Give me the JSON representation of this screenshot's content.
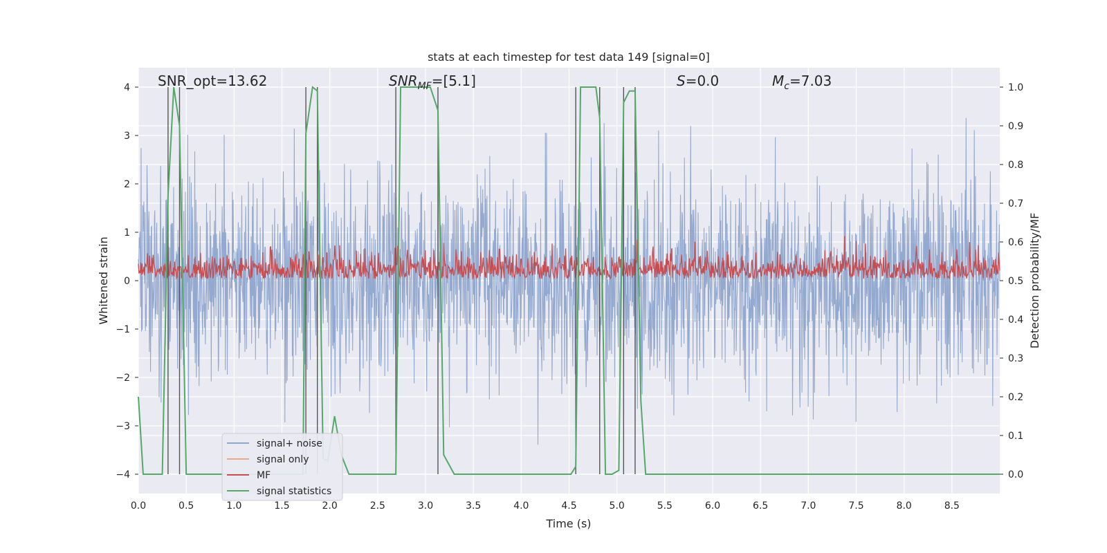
{
  "chart_data": {
    "type": "line",
    "title": "stats at each timestep for test data 149 [signal=0]",
    "xlabel": "Time (s)",
    "ylabel_left": "Whitened strain",
    "ylabel_right": "Detection probability/MF",
    "xlim": [
      0.0,
      9.0
    ],
    "ylim_left": [
      -4.4,
      4.4
    ],
    "ylim_right": [
      -0.05,
      1.05
    ],
    "x_ticks": [
      0.0,
      0.5,
      1.0,
      1.5,
      2.0,
      2.5,
      3.0,
      3.5,
      4.0,
      4.5,
      5.0,
      5.5,
      6.0,
      6.5,
      7.0,
      7.5,
      8.0,
      8.5
    ],
    "x_tick_labels": [
      "0.0",
      "0.5",
      "1.0",
      "1.5",
      "2.0",
      "2.5",
      "3.0",
      "3.5",
      "4.0",
      "4.5",
      "5.0",
      "5.5",
      "6.0",
      "6.5",
      "7.0",
      "7.5",
      "8.0",
      "8.5"
    ],
    "y_left_ticks": [
      -4,
      -3,
      -2,
      -1,
      0,
      1,
      2,
      3,
      4
    ],
    "y_left_tick_labels": [
      "−4",
      "−3",
      "−2",
      "−1",
      "0",
      "1",
      "2",
      "3",
      "4"
    ],
    "y_right_ticks": [
      0.0,
      0.1,
      0.2,
      0.3,
      0.4,
      0.5,
      0.6,
      0.7,
      0.8,
      0.9,
      1.0
    ],
    "y_right_tick_labels": [
      "0.0",
      "0.1",
      "0.2",
      "0.3",
      "0.4",
      "0.5",
      "0.6",
      "0.7",
      "0.8",
      "0.9",
      "1.0"
    ],
    "annotations": {
      "snr_opt": "SNR_opt=13.62",
      "snr_mf_main": "SNR",
      "snr_mf_sub": "MF",
      "snr_mf_value": "=[5.1]",
      "s_main": "S",
      "s_value": "=0.0",
      "mc_main": "M",
      "mc_sub": "c",
      "mc_value": "=7.03"
    },
    "legend": {
      "position": "lower-left",
      "entries": [
        {
          "label": "signal+ noise",
          "color": "#8fa5cc"
        },
        {
          "label": "signal only",
          "color": "#e8a98c"
        },
        {
          "label": "MF",
          "color": "#c44e52"
        },
        {
          "label": "signal statistics",
          "color": "#55a868"
        }
      ]
    },
    "vertical_lines_x": [
      0.31,
      0.43,
      1.75,
      1.87,
      2.69,
      3.13,
      4.57,
      4.82,
      5.07,
      5.19
    ],
    "series": [
      {
        "name": "signal statistics",
        "axis": "right",
        "color": "#55a868",
        "x": [
          0.0,
          0.05,
          0.25,
          0.31,
          0.37,
          0.43,
          0.5,
          0.8,
          1.0,
          1.72,
          1.75,
          1.82,
          1.87,
          1.93,
          1.98,
          2.05,
          2.12,
          2.2,
          2.69,
          2.74,
          3.05,
          3.13,
          3.19,
          3.3,
          4.52,
          4.57,
          4.62,
          4.78,
          4.82,
          4.88,
          4.95,
          5.02,
          5.07,
          5.13,
          5.19,
          5.25,
          5.3,
          6.0,
          7.0,
          8.0,
          9.0
        ],
        "y": [
          0.2,
          0.0,
          0.0,
          0.72,
          1.0,
          0.9,
          0.0,
          0.0,
          0.0,
          0.0,
          0.88,
          1.0,
          0.99,
          0.04,
          0.035,
          0.15,
          0.05,
          0.0,
          0.0,
          1.0,
          1.0,
          0.94,
          0.05,
          0.0,
          0.0,
          0.02,
          1.0,
          1.0,
          0.92,
          0.0,
          0.0,
          0.01,
          0.96,
          0.99,
          0.99,
          0.19,
          0.0,
          0.0,
          0.0,
          0.0,
          0.0
        ]
      },
      {
        "name": "MF",
        "axis": "right",
        "color": "#c44e52",
        "generated": true,
        "mean": 0.53,
        "amplitude": 0.03,
        "note": "noisy band centered around 0.53"
      },
      {
        "name": "signal+ noise",
        "axis": "left",
        "color": "#8fa5cc",
        "generated": true,
        "std": 1.0,
        "note": "dense whitened noise band"
      },
      {
        "name": "signal only",
        "axis": "left",
        "color": "#e8a98c",
        "values": []
      }
    ]
  }
}
